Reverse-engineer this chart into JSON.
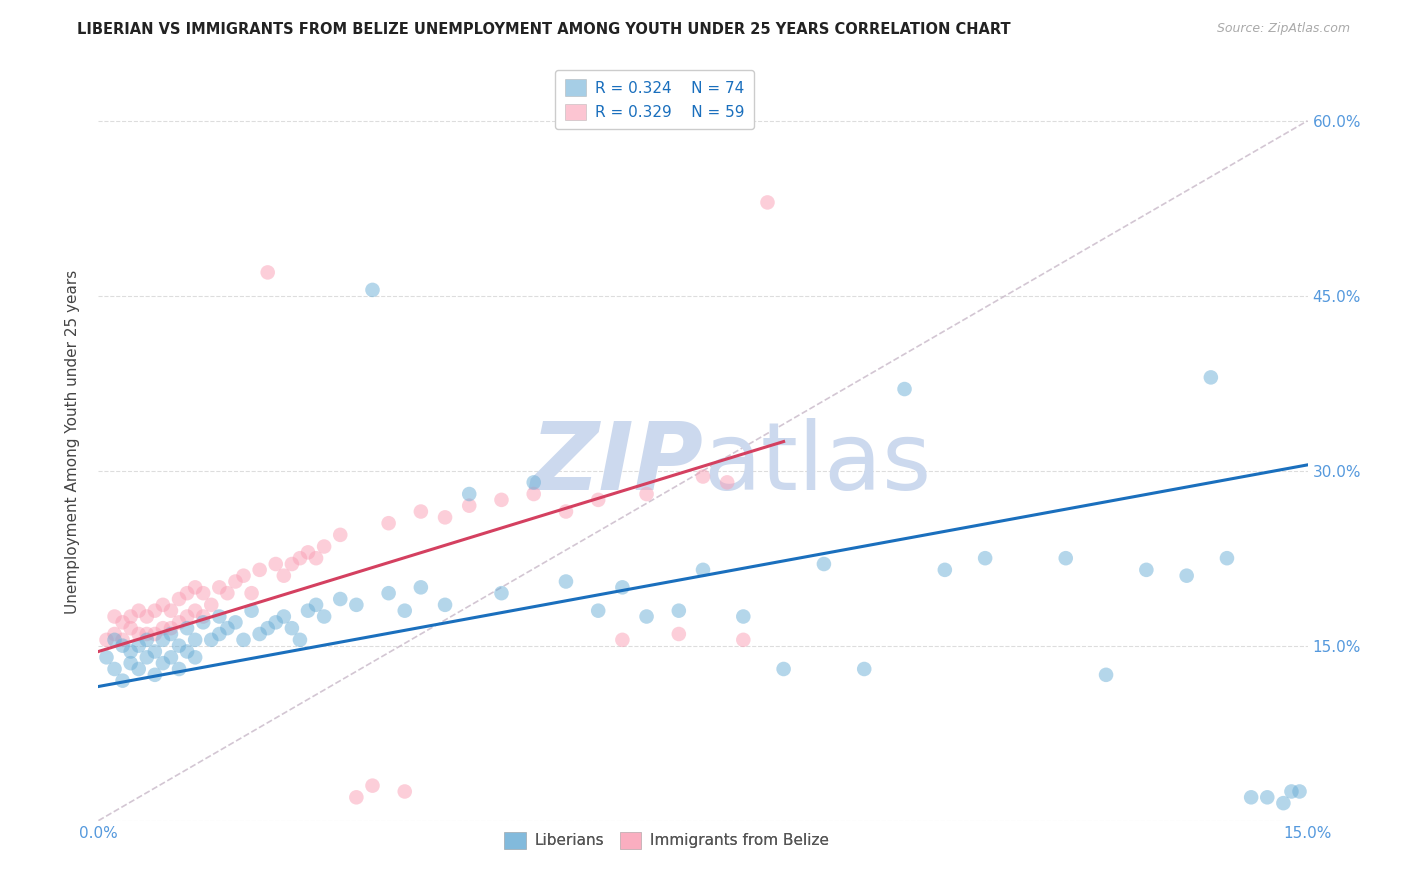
{
  "title": "LIBERIAN VS IMMIGRANTS FROM BELIZE UNEMPLOYMENT AMONG YOUTH UNDER 25 YEARS CORRELATION CHART",
  "source": "Source: ZipAtlas.com",
  "ylabel": "Unemployment Among Youth under 25 years",
  "xlim": [
    0.0,
    0.15
  ],
  "ylim": [
    0.0,
    0.65
  ],
  "xtick_pos": [
    0.0,
    0.03,
    0.06,
    0.09,
    0.12,
    0.15
  ],
  "xtick_labels": [
    "0.0%",
    "",
    "",
    "",
    "",
    "15.0%"
  ],
  "ytick_pos": [
    0.0,
    0.15,
    0.3,
    0.45,
    0.6
  ],
  "ytick_labels_right": [
    "",
    "15.0%",
    "30.0%",
    "45.0%",
    "60.0%"
  ],
  "legend_r1": "R = 0.324",
  "legend_n1": "N = 74",
  "legend_r2": "R = 0.329",
  "legend_n2": "N = 59",
  "blue_color": "#6baed6",
  "pink_color": "#fa9fb5",
  "line_blue": "#1a6fbd",
  "line_pink": "#d44060",
  "diag_color": "#c8b8c8",
  "watermark_color": "#ccd9ee",
  "blue_line_x": [
    0.0,
    0.15
  ],
  "blue_line_y": [
    0.115,
    0.305
  ],
  "pink_line_x": [
    0.0,
    0.085
  ],
  "pink_line_y": [
    0.145,
    0.325
  ],
  "blue_scatter_x": [
    0.001,
    0.002,
    0.002,
    0.003,
    0.003,
    0.004,
    0.004,
    0.005,
    0.005,
    0.006,
    0.006,
    0.007,
    0.007,
    0.008,
    0.008,
    0.009,
    0.009,
    0.01,
    0.01,
    0.011,
    0.011,
    0.012,
    0.012,
    0.013,
    0.014,
    0.015,
    0.015,
    0.016,
    0.017,
    0.018,
    0.019,
    0.02,
    0.021,
    0.022,
    0.023,
    0.024,
    0.025,
    0.026,
    0.027,
    0.028,
    0.03,
    0.032,
    0.034,
    0.036,
    0.038,
    0.04,
    0.043,
    0.046,
    0.05,
    0.054,
    0.058,
    0.062,
    0.065,
    0.068,
    0.072,
    0.075,
    0.08,
    0.085,
    0.09,
    0.095,
    0.1,
    0.105,
    0.11,
    0.12,
    0.125,
    0.13,
    0.135,
    0.138,
    0.14,
    0.143,
    0.145,
    0.147,
    0.148,
    0.149
  ],
  "blue_scatter_y": [
    0.14,
    0.13,
    0.155,
    0.12,
    0.15,
    0.135,
    0.145,
    0.13,
    0.15,
    0.14,
    0.155,
    0.125,
    0.145,
    0.135,
    0.155,
    0.14,
    0.16,
    0.13,
    0.15,
    0.145,
    0.165,
    0.14,
    0.155,
    0.17,
    0.155,
    0.16,
    0.175,
    0.165,
    0.17,
    0.155,
    0.18,
    0.16,
    0.165,
    0.17,
    0.175,
    0.165,
    0.155,
    0.18,
    0.185,
    0.175,
    0.19,
    0.185,
    0.455,
    0.195,
    0.18,
    0.2,
    0.185,
    0.28,
    0.195,
    0.29,
    0.205,
    0.18,
    0.2,
    0.175,
    0.18,
    0.215,
    0.175,
    0.13,
    0.22,
    0.13,
    0.37,
    0.215,
    0.225,
    0.225,
    0.125,
    0.215,
    0.21,
    0.38,
    0.225,
    0.02,
    0.02,
    0.015,
    0.025,
    0.025
  ],
  "pink_scatter_x": [
    0.001,
    0.002,
    0.002,
    0.003,
    0.003,
    0.004,
    0.004,
    0.005,
    0.005,
    0.006,
    0.006,
    0.007,
    0.007,
    0.008,
    0.008,
    0.009,
    0.009,
    0.01,
    0.01,
    0.011,
    0.011,
    0.012,
    0.012,
    0.013,
    0.013,
    0.014,
    0.015,
    0.016,
    0.017,
    0.018,
    0.019,
    0.02,
    0.021,
    0.022,
    0.023,
    0.024,
    0.025,
    0.026,
    0.027,
    0.028,
    0.03,
    0.032,
    0.034,
    0.036,
    0.038,
    0.04,
    0.043,
    0.046,
    0.05,
    0.054,
    0.058,
    0.062,
    0.065,
    0.068,
    0.072,
    0.075,
    0.078,
    0.08,
    0.083
  ],
  "pink_scatter_y": [
    0.155,
    0.16,
    0.175,
    0.155,
    0.17,
    0.165,
    0.175,
    0.16,
    0.18,
    0.16,
    0.175,
    0.16,
    0.18,
    0.165,
    0.185,
    0.165,
    0.18,
    0.17,
    0.19,
    0.175,
    0.195,
    0.18,
    0.2,
    0.175,
    0.195,
    0.185,
    0.2,
    0.195,
    0.205,
    0.21,
    0.195,
    0.215,
    0.47,
    0.22,
    0.21,
    0.22,
    0.225,
    0.23,
    0.225,
    0.235,
    0.245,
    0.02,
    0.03,
    0.255,
    0.025,
    0.265,
    0.26,
    0.27,
    0.275,
    0.28,
    0.265,
    0.275,
    0.155,
    0.28,
    0.16,
    0.295,
    0.29,
    0.155,
    0.53
  ]
}
